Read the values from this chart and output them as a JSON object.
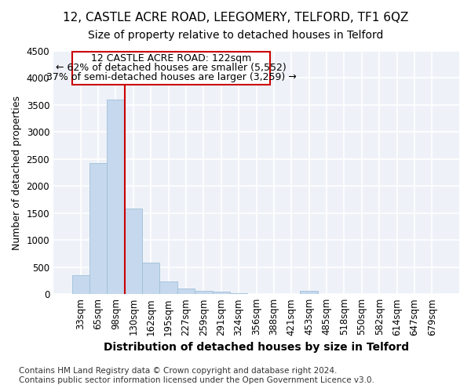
{
  "title": "12, CASTLE ACRE ROAD, LEEGOMERY, TELFORD, TF1 6QZ",
  "subtitle": "Size of property relative to detached houses in Telford",
  "xlabel": "Distribution of detached houses by size in Telford",
  "ylabel": "Number of detached properties",
  "categories": [
    "33sqm",
    "65sqm",
    "98sqm",
    "130sqm",
    "162sqm",
    "195sqm",
    "227sqm",
    "259sqm",
    "291sqm",
    "324sqm",
    "356sqm",
    "388sqm",
    "421sqm",
    "453sqm",
    "485sqm",
    "518sqm",
    "550sqm",
    "582sqm",
    "614sqm",
    "647sqm",
    "679sqm"
  ],
  "values": [
    355,
    2420,
    3600,
    1580,
    590,
    230,
    110,
    65,
    50,
    20,
    0,
    0,
    0,
    55,
    0,
    0,
    0,
    0,
    0,
    0,
    0
  ],
  "bar_color": "#c5d8ed",
  "bar_edgecolor": "#9fbfd8",
  "vline_x_index": 2.5,
  "vline_color": "#cc0000",
  "annotation_line1": "12 CASTLE ACRE ROAD: 122sqm",
  "annotation_line2": "← 62% of detached houses are smaller (5,552)",
  "annotation_line3": "37% of semi-detached houses are larger (3,259) →",
  "annotation_box_edgecolor": "#cc0000",
  "annotation_box_facecolor": "white",
  "ylim": [
    0,
    4500
  ],
  "yticks": [
    0,
    500,
    1000,
    1500,
    2000,
    2500,
    3000,
    3500,
    4000,
    4500
  ],
  "footnote": "Contains HM Land Registry data © Crown copyright and database right 2024.\nContains public sector information licensed under the Open Government Licence v3.0.",
  "background_color": "#eef2f8",
  "grid_color": "#ffffff",
  "title_fontsize": 11,
  "subtitle_fontsize": 10,
  "xlabel_fontsize": 10,
  "ylabel_fontsize": 9,
  "tick_fontsize": 8.5,
  "annotation_fontsize": 9,
  "footnote_fontsize": 7.5
}
